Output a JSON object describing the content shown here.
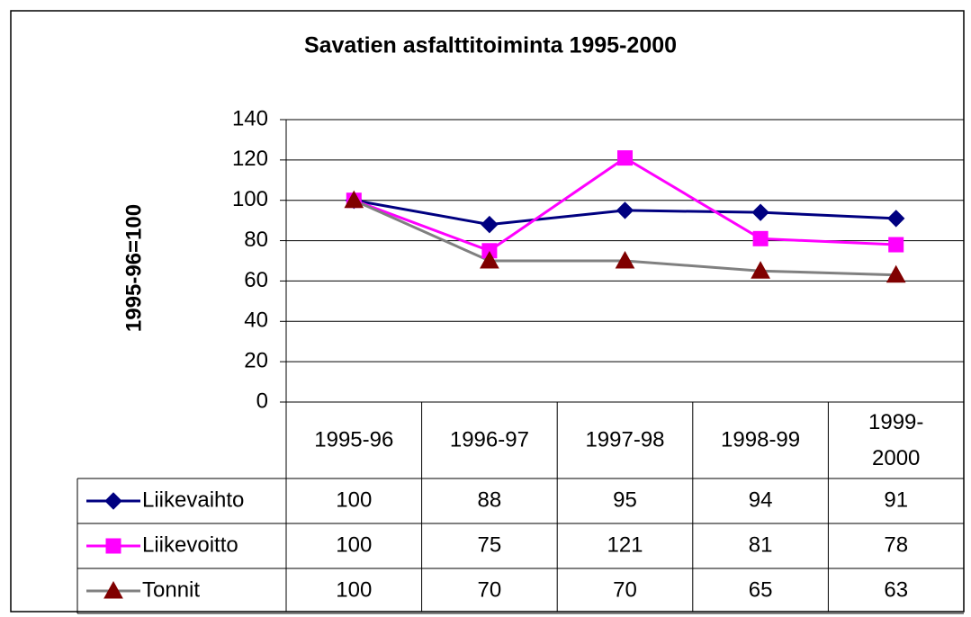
{
  "chart_data": {
    "type": "line",
    "title": "Savatien asfalttitoiminta 1995-2000",
    "y_label": "1995-96=100",
    "categories": [
      "1995-96",
      "1996-97",
      "1997-98",
      "1998-99",
      "1999-2000"
    ],
    "series": [
      {
        "name": "Liikevaihto",
        "color": "#000080",
        "marker": "diamond",
        "values": [
          100,
          88,
          95,
          94,
          91
        ]
      },
      {
        "name": "Liikevoitto",
        "color": "#ff00ff",
        "marker": "square",
        "values": [
          100,
          75,
          121,
          81,
          78
        ]
      },
      {
        "name": "Tonnit",
        "color": "#808080",
        "marker_color": "#800000",
        "marker": "triangle",
        "values": [
          100,
          70,
          70,
          65,
          63
        ]
      }
    ],
    "ylim": [
      0,
      140
    ],
    "yticks": [
      0,
      20,
      40,
      60,
      80,
      100,
      120,
      140
    ],
    "grid": true,
    "data_table": true
  }
}
